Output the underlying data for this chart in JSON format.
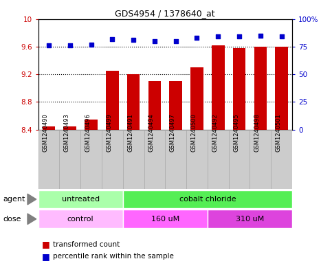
{
  "title": "GDS4954 / 1378640_at",
  "samples": [
    "GSM1240490",
    "GSM1240493",
    "GSM1240496",
    "GSM1240499",
    "GSM1240491",
    "GSM1240494",
    "GSM1240497",
    "GSM1240500",
    "GSM1240492",
    "GSM1240495",
    "GSM1240498",
    "GSM1240501"
  ],
  "bar_values": [
    8.45,
    8.45,
    8.55,
    9.25,
    9.2,
    9.1,
    9.1,
    9.3,
    9.62,
    9.58,
    9.6,
    9.6
  ],
  "scatter_values": [
    76,
    76,
    77,
    82,
    81,
    80,
    80,
    83,
    84,
    84,
    85,
    84
  ],
  "bar_color": "#cc0000",
  "scatter_color": "#0000cc",
  "ylim_left": [
    8.4,
    10.0
  ],
  "ylim_right": [
    0,
    100
  ],
  "yticks_left": [
    8.4,
    8.8,
    9.2,
    9.6,
    10.0
  ],
  "ytick_labels_left": [
    "8.4",
    "8.8",
    "9.2",
    "9.6",
    "10"
  ],
  "yticks_right": [
    0,
    25,
    50,
    75,
    100
  ],
  "ytick_labels_right": [
    "0",
    "25",
    "50",
    "75",
    "100%"
  ],
  "dotted_lines": [
    9.6,
    9.2,
    8.8
  ],
  "agent_groups": [
    {
      "label": "untreated",
      "start": 0,
      "end": 4,
      "color": "#aaffaa"
    },
    {
      "label": "cobalt chloride",
      "start": 4,
      "end": 12,
      "color": "#55ee55"
    }
  ],
  "dose_groups": [
    {
      "label": "control",
      "start": 0,
      "end": 4,
      "color": "#ffbbff"
    },
    {
      "label": "160 uM",
      "start": 4,
      "end": 8,
      "color": "#ff66ff"
    },
    {
      "label": "310 uM",
      "start": 8,
      "end": 12,
      "color": "#dd44dd"
    }
  ],
  "legend_bar_label": "transformed count",
  "legend_scatter_label": "percentile rank within the sample",
  "bar_width": 0.6,
  "agent_label": "agent",
  "dose_label": "dose",
  "sample_box_color": "#cccccc",
  "sample_box_edge_color": "#aaaaaa"
}
